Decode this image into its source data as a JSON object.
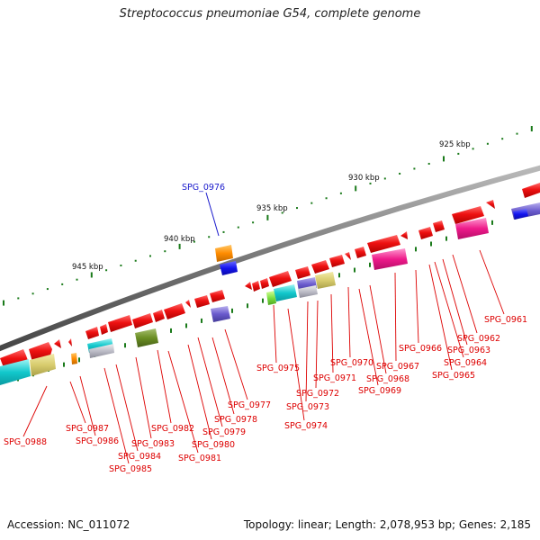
{
  "title": "Streptococcus pneumoniae G54, complete genome",
  "footer": {
    "accession": "Accession: NC_011072",
    "topology": "Topology: linear; Length: 2,078,953 bp; Genes: 2,185"
  },
  "scale_labels": [
    "925 kbp",
    "930 kbp",
    "935 kbp",
    "940 kbp",
    "945 kbp"
  ],
  "highlight_gene": "SPG_0976",
  "gene_labels": [
    "SPG_0961",
    "SPG_0962",
    "SPG_0963",
    "SPG_0964",
    "SPG_0965",
    "SPG_0966",
    "SPG_0967",
    "SPG_0968",
    "SPG_0969",
    "SPG_0970",
    "SPG_0971",
    "SPG_0972",
    "SPG_0973",
    "SPG_0974",
    "SPG_0975",
    "SPG_0977",
    "SPG_0978",
    "SPG_0979",
    "SPG_0980",
    "SPG_0981",
    "SPG_0982",
    "SPG_0983",
    "SPG_0984",
    "SPG_0985",
    "SPG_0986",
    "SPG_0987",
    "SPG_0988"
  ],
  "colors": {
    "gene_red": "#ee1111",
    "label_red": "#dd0000",
    "highlight_blue": "#1a1acc",
    "backbone": "#777777",
    "tick_green": "#1a7a1a"
  }
}
